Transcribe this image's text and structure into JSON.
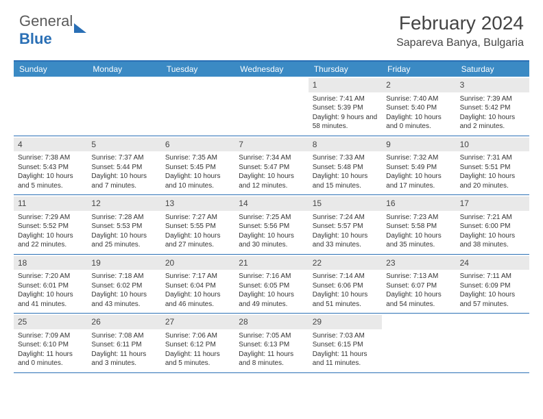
{
  "logo": {
    "general": "General",
    "blue": "Blue"
  },
  "title": "February 2024",
  "location": "Sapareva Banya, Bulgaria",
  "colors": {
    "header_bg": "#3b8ac4",
    "accent_border": "#2a6fb5",
    "daynum_bg": "#e9e9e9",
    "text": "#333333",
    "page_bg": "#ffffff"
  },
  "typography": {
    "title_fontsize": 28,
    "location_fontsize": 16,
    "dow_fontsize": 12,
    "cell_fontsize": 10
  },
  "days_of_week": [
    "Sunday",
    "Monday",
    "Tuesday",
    "Wednesday",
    "Thursday",
    "Friday",
    "Saturday"
  ],
  "weeks": [
    [
      null,
      null,
      null,
      null,
      {
        "n": "1",
        "sunrise": "7:41 AM",
        "sunset": "5:39 PM",
        "daylight": "9 hours and 58 minutes."
      },
      {
        "n": "2",
        "sunrise": "7:40 AM",
        "sunset": "5:40 PM",
        "daylight": "10 hours and 0 minutes."
      },
      {
        "n": "3",
        "sunrise": "7:39 AM",
        "sunset": "5:42 PM",
        "daylight": "10 hours and 2 minutes."
      }
    ],
    [
      {
        "n": "4",
        "sunrise": "7:38 AM",
        "sunset": "5:43 PM",
        "daylight": "10 hours and 5 minutes."
      },
      {
        "n": "5",
        "sunrise": "7:37 AM",
        "sunset": "5:44 PM",
        "daylight": "10 hours and 7 minutes."
      },
      {
        "n": "6",
        "sunrise": "7:35 AM",
        "sunset": "5:45 PM",
        "daylight": "10 hours and 10 minutes."
      },
      {
        "n": "7",
        "sunrise": "7:34 AM",
        "sunset": "5:47 PM",
        "daylight": "10 hours and 12 minutes."
      },
      {
        "n": "8",
        "sunrise": "7:33 AM",
        "sunset": "5:48 PM",
        "daylight": "10 hours and 15 minutes."
      },
      {
        "n": "9",
        "sunrise": "7:32 AM",
        "sunset": "5:49 PM",
        "daylight": "10 hours and 17 minutes."
      },
      {
        "n": "10",
        "sunrise": "7:31 AM",
        "sunset": "5:51 PM",
        "daylight": "10 hours and 20 minutes."
      }
    ],
    [
      {
        "n": "11",
        "sunrise": "7:29 AM",
        "sunset": "5:52 PM",
        "daylight": "10 hours and 22 minutes."
      },
      {
        "n": "12",
        "sunrise": "7:28 AM",
        "sunset": "5:53 PM",
        "daylight": "10 hours and 25 minutes."
      },
      {
        "n": "13",
        "sunrise": "7:27 AM",
        "sunset": "5:55 PM",
        "daylight": "10 hours and 27 minutes."
      },
      {
        "n": "14",
        "sunrise": "7:25 AM",
        "sunset": "5:56 PM",
        "daylight": "10 hours and 30 minutes."
      },
      {
        "n": "15",
        "sunrise": "7:24 AM",
        "sunset": "5:57 PM",
        "daylight": "10 hours and 33 minutes."
      },
      {
        "n": "16",
        "sunrise": "7:23 AM",
        "sunset": "5:58 PM",
        "daylight": "10 hours and 35 minutes."
      },
      {
        "n": "17",
        "sunrise": "7:21 AM",
        "sunset": "6:00 PM",
        "daylight": "10 hours and 38 minutes."
      }
    ],
    [
      {
        "n": "18",
        "sunrise": "7:20 AM",
        "sunset": "6:01 PM",
        "daylight": "10 hours and 41 minutes."
      },
      {
        "n": "19",
        "sunrise": "7:18 AM",
        "sunset": "6:02 PM",
        "daylight": "10 hours and 43 minutes."
      },
      {
        "n": "20",
        "sunrise": "7:17 AM",
        "sunset": "6:04 PM",
        "daylight": "10 hours and 46 minutes."
      },
      {
        "n": "21",
        "sunrise": "7:16 AM",
        "sunset": "6:05 PM",
        "daylight": "10 hours and 49 minutes."
      },
      {
        "n": "22",
        "sunrise": "7:14 AM",
        "sunset": "6:06 PM",
        "daylight": "10 hours and 51 minutes."
      },
      {
        "n": "23",
        "sunrise": "7:13 AM",
        "sunset": "6:07 PM",
        "daylight": "10 hours and 54 minutes."
      },
      {
        "n": "24",
        "sunrise": "7:11 AM",
        "sunset": "6:09 PM",
        "daylight": "10 hours and 57 minutes."
      }
    ],
    [
      {
        "n": "25",
        "sunrise": "7:09 AM",
        "sunset": "6:10 PM",
        "daylight": "11 hours and 0 minutes."
      },
      {
        "n": "26",
        "sunrise": "7:08 AM",
        "sunset": "6:11 PM",
        "daylight": "11 hours and 3 minutes."
      },
      {
        "n": "27",
        "sunrise": "7:06 AM",
        "sunset": "6:12 PM",
        "daylight": "11 hours and 5 minutes."
      },
      {
        "n": "28",
        "sunrise": "7:05 AM",
        "sunset": "6:13 PM",
        "daylight": "11 hours and 8 minutes."
      },
      {
        "n": "29",
        "sunrise": "7:03 AM",
        "sunset": "6:15 PM",
        "daylight": "11 hours and 11 minutes."
      },
      null,
      null
    ]
  ],
  "labels": {
    "sunrise": "Sunrise:",
    "sunset": "Sunset:",
    "daylight": "Daylight:"
  }
}
